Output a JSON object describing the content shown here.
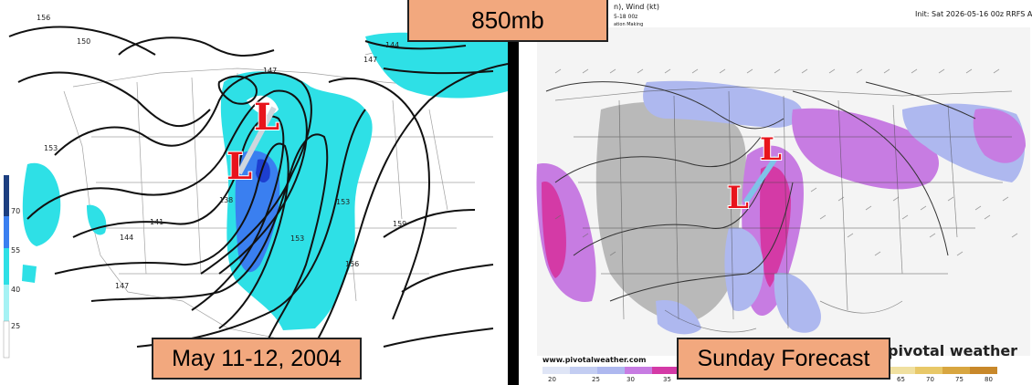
{
  "title": "850mb",
  "left_panel": {
    "caption": "May 11-12, 2004",
    "colorbar_ticks": [
      "70",
      "55",
      "40",
      "25"
    ],
    "contour_labels": [
      "156",
      "150",
      "153",
      "147",
      "144",
      "138",
      "141",
      "144",
      "147",
      "153",
      "153",
      "156",
      "159",
      "147"
    ],
    "low_markers": [
      "L",
      "L"
    ]
  },
  "right_panel": {
    "caption": "Sunday Forecast",
    "header_left": "n), Wind (kt)",
    "header_left_line2": "5-18 00z",
    "header_left_line3": "ation Making",
    "header_right": "Init: Sat 2026-05-16 00z RRFS A",
    "footer_url": "www.pivotalweather.com",
    "watermark": "pivotal weather",
    "colorbar_ticks": [
      "20",
      "25",
      "30",
      "35",
      "65",
      "70",
      "75",
      "80"
    ],
    "low_markers": [
      "L",
      "L"
    ],
    "colors": {
      "gray_dry": "#b9b9b9",
      "blue_moist": "#aeb8ef",
      "purple": "#c77ce2",
      "magenta": "#d43aa6"
    }
  },
  "colors": {
    "cyan_fill": "#2ee0e6",
    "blue_fill": "#3a7ff0",
    "dark_blue_fill": "#1d3fd0",
    "label_bg": "#f2a87e",
    "low_red": "#e8141c"
  }
}
